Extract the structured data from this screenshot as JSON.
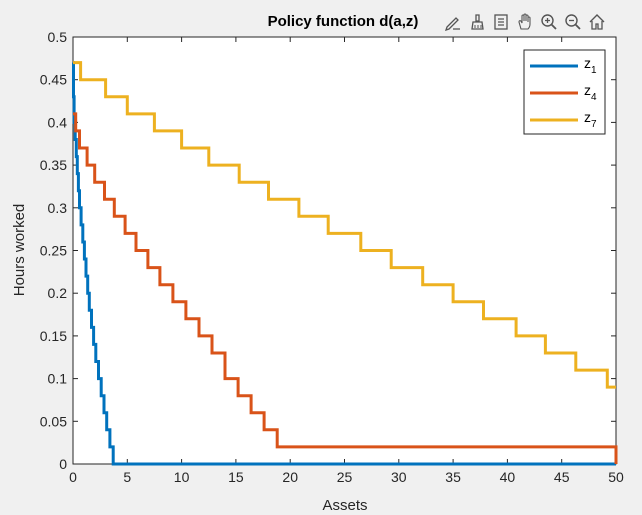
{
  "toolbar": {
    "icons": [
      "edit-icon",
      "brush-icon",
      "datatip-icon",
      "pan-hand-icon",
      "zoom-in-icon",
      "zoom-out-icon",
      "home-icon"
    ]
  },
  "chart_data": {
    "type": "line",
    "title": "Policy function d(a,z)",
    "xlabel": "Assets",
    "ylabel": "Hours worked",
    "xlim": [
      0,
      50
    ],
    "ylim": [
      0,
      0.5
    ],
    "xticks": [
      0,
      5,
      10,
      15,
      20,
      25,
      30,
      35,
      40,
      45,
      50
    ],
    "yticks": [
      0,
      0.05,
      0.1,
      0.15,
      0.2,
      0.25,
      0.3,
      0.35,
      0.4,
      0.45,
      0.5
    ],
    "xtick_labels": [
      "0",
      "5",
      "10",
      "15",
      "20",
      "25",
      "30",
      "35",
      "40",
      "45",
      "50"
    ],
    "ytick_labels": [
      "0",
      "0.05",
      "0.1",
      "0.15",
      "0.2",
      "0.25",
      "0.3",
      "0.35",
      "0.4",
      "0.45",
      "0.5"
    ],
    "grid": false,
    "legend_position": "top-right",
    "step": true,
    "series": [
      {
        "name": "z1",
        "base": "z",
        "subscript": "1",
        "color": "#0072BD",
        "x": [
          0,
          0.05,
          0.1,
          0.2,
          0.3,
          0.4,
          0.5,
          0.6,
          0.75,
          0.9,
          1.05,
          1.2,
          1.35,
          1.5,
          1.7,
          1.9,
          2.1,
          2.35,
          2.6,
          2.85,
          3.1,
          3.4,
          3.7,
          4.2,
          50
        ],
        "y": [
          0.47,
          0.43,
          0.4,
          0.38,
          0.36,
          0.34,
          0.32,
          0.3,
          0.28,
          0.26,
          0.24,
          0.22,
          0.2,
          0.18,
          0.16,
          0.14,
          0.12,
          0.1,
          0.08,
          0.06,
          0.04,
          0.02,
          0.0,
          0.0,
          0.0
        ]
      },
      {
        "name": "z4",
        "base": "z",
        "subscript": "4",
        "color": "#D95319",
        "x": [
          0,
          0.25,
          0.6,
          1.3,
          2.0,
          2.9,
          3.8,
          4.8,
          5.8,
          6.9,
          8.0,
          9.2,
          10.4,
          11.6,
          12.8,
          14.0,
          15.2,
          16.4,
          17.6,
          18.8,
          50
        ],
        "y": [
          0.41,
          0.39,
          0.37,
          0.35,
          0.33,
          0.31,
          0.29,
          0.27,
          0.25,
          0.23,
          0.21,
          0.19,
          0.17,
          0.15,
          0.13,
          0.1,
          0.08,
          0.06,
          0.04,
          0.02,
          0.0
        ]
      },
      {
        "name": "z7",
        "base": "z",
        "subscript": "7",
        "color": "#EDB120",
        "x": [
          0,
          0.7,
          3.0,
          5.0,
          7.5,
          10.0,
          12.5,
          15.3,
          18.0,
          20.8,
          23.5,
          26.5,
          29.3,
          32.2,
          35.0,
          37.8,
          40.8,
          43.5,
          46.3,
          49.2,
          50
        ],
        "y": [
          0.47,
          0.45,
          0.43,
          0.41,
          0.39,
          0.37,
          0.35,
          0.33,
          0.31,
          0.29,
          0.27,
          0.25,
          0.23,
          0.21,
          0.19,
          0.17,
          0.15,
          0.13,
          0.11,
          0.09,
          0.09
        ]
      }
    ]
  }
}
